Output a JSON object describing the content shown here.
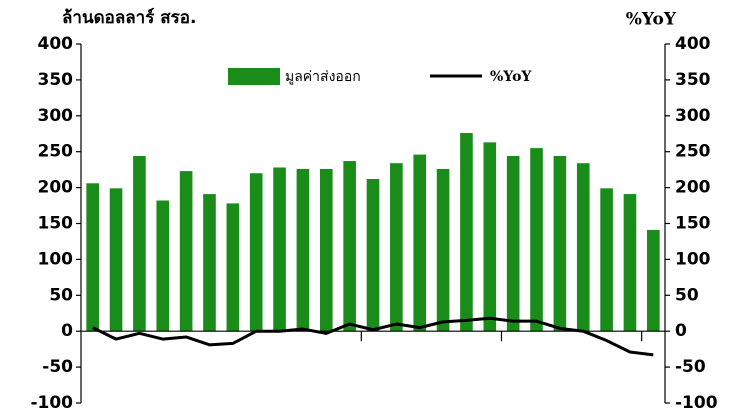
{
  "chart_data": {
    "type": "bar_line",
    "y_label": "ล้านดอลลาร์ สรอ.",
    "y2_label": "%YoY",
    "categories": [
      null,
      null,
      null,
      null,
      null,
      null,
      null,
      null,
      null,
      null,
      null,
      null,
      null,
      null,
      null,
      null,
      null,
      null,
      null,
      null,
      null,
      null,
      null,
      null,
      null
    ],
    "series": [
      {
        "name": "มูลค่าส่งออก",
        "type": "bar",
        "color": "#1a8c1a",
        "values": [
          206,
          199,
          244,
          182,
          223,
          191,
          178,
          220,
          228,
          226,
          226,
          237,
          212,
          234,
          246,
          226,
          276,
          263,
          244,
          255,
          244,
          234,
          199,
          191,
          141
        ]
      },
      {
        "name": "%YoY",
        "type": "line",
        "axis": "y2",
        "color": "#000000",
        "values": [
          5,
          -11,
          -3,
          -11,
          -8,
          -19,
          -17,
          0,
          0,
          3,
          -3,
          10,
          2,
          10,
          5,
          13,
          15,
          18,
          14,
          14,
          4,
          0,
          -13,
          -29,
          -33
        ]
      }
    ],
    "ylim": [
      -100,
      400
    ],
    "yticks": [
      -100,
      -50,
      0,
      50,
      100,
      150,
      200,
      250,
      300,
      350,
      400
    ],
    "y2lim": [
      -100,
      400
    ],
    "y2ticks": [
      -100,
      -50,
      0,
      50,
      100,
      150,
      200,
      250,
      300,
      350,
      400
    ],
    "legend": "top"
  }
}
